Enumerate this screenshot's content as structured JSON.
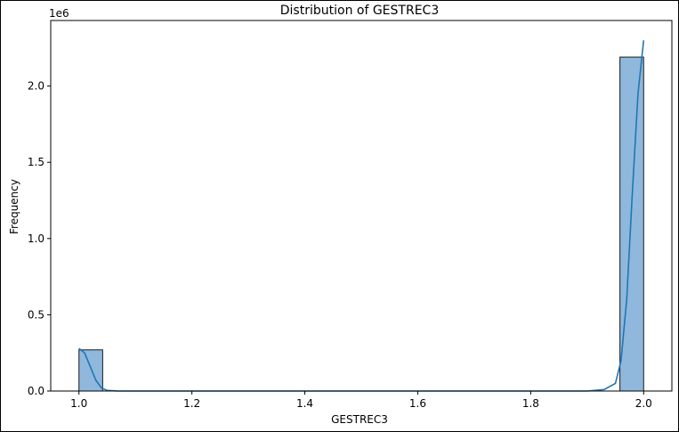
{
  "chart_data": {
    "type": "bar",
    "title": "Distribution of GESTREC3",
    "xlabel": "GESTREC3",
    "ylabel": "Frequency",
    "y_offset_label": "1e6",
    "xlim": [
      0.95,
      2.05
    ],
    "ylim": [
      0,
      2.43
    ],
    "x_ticks": [
      {
        "value": 1.0,
        "label": "1.0"
      },
      {
        "value": 1.2,
        "label": "1.2"
      },
      {
        "value": 1.4,
        "label": "1.4"
      },
      {
        "value": 1.6,
        "label": "1.6"
      },
      {
        "value": 1.8,
        "label": "1.8"
      },
      {
        "value": 2.0,
        "label": "2.0"
      }
    ],
    "y_ticks": [
      {
        "value": 0.0,
        "label": "0.0"
      },
      {
        "value": 0.5,
        "label": "0.5"
      },
      {
        "value": 1.0,
        "label": "1.0"
      },
      {
        "value": 1.5,
        "label": "1.5"
      },
      {
        "value": 2.0,
        "label": "2.0"
      }
    ],
    "bins": [
      {
        "start": 1.0,
        "end": 1.042,
        "value": 0.27
      },
      {
        "start": 1.958,
        "end": 2.0,
        "value": 2.19
      }
    ],
    "kde": {
      "x": [
        1.0,
        1.01,
        1.02,
        1.03,
        1.04,
        1.05,
        1.07,
        1.1,
        1.3,
        1.5,
        1.7,
        1.9,
        1.93,
        1.95,
        1.96,
        1.97,
        1.98,
        1.99,
        2.0
      ],
      "y": [
        0.28,
        0.25,
        0.16,
        0.07,
        0.02,
        0.004,
        0.0,
        0.0,
        0.0,
        0.0,
        0.0,
        0.0,
        0.01,
        0.05,
        0.2,
        0.6,
        1.3,
        1.95,
        2.3
      ]
    },
    "colors": {
      "bar_fill": "#8fb8dc",
      "bar_edge": "#1a1a1a",
      "kde_line": "#1f77b4"
    },
    "grid": false
  }
}
